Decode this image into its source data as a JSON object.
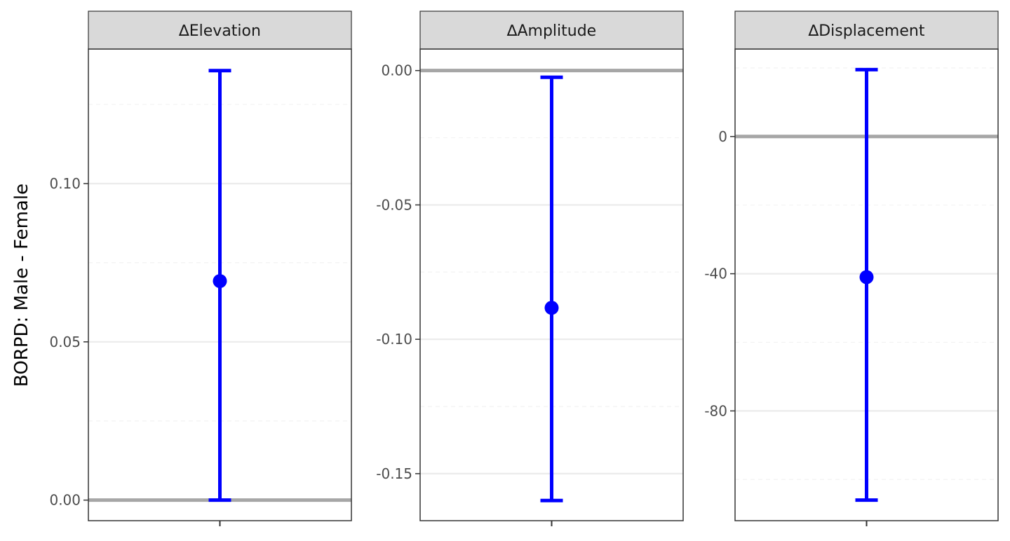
{
  "chart_data": {
    "type": "errorbar",
    "ylabel": "BORPD: Male - Female",
    "reference_line": 0,
    "panels": [
      {
        "title": "∆Elevation",
        "estimate": 0.0692,
        "lower": 0.0,
        "upper": 0.1357,
        "ylim": [
          -0.0065,
          0.1425
        ],
        "major_ticks": [
          0.0,
          0.05,
          0.1
        ],
        "tick_labels": [
          "0.00",
          "0.05",
          "0.10"
        ],
        "minor_ticks": [
          0.025,
          0.075,
          0.125
        ]
      },
      {
        "title": "∆Amplitude",
        "estimate": -0.0883,
        "lower": -0.16,
        "upper": -0.0025,
        "ylim": [
          -0.1675,
          0.008
        ],
        "major_ticks": [
          0.0,
          -0.05,
          -0.1,
          -0.15
        ],
        "tick_labels": [
          "0.00",
          "-0.05",
          "-0.10",
          "-0.15"
        ],
        "minor_ticks": [
          -0.025,
          -0.075,
          -0.125
        ]
      },
      {
        "title": "∆Displacement",
        "estimate": -41,
        "lower": -106,
        "upper": 19.5,
        "ylim": [
          -112,
          25.5
        ],
        "major_ticks": [
          0,
          -40,
          -80
        ],
        "tick_labels": [
          "0",
          "-40",
          "-80"
        ],
        "minor_ticks": [
          20,
          -20,
          -60,
          -100
        ]
      }
    ],
    "colors": {
      "series": "#0000ff",
      "zero_line": "#a6a6a6",
      "strip": "#d9d9d9",
      "major_grid": "#ebebeb",
      "minor_grid": "#f2f2f2"
    },
    "grid": true,
    "legend": "none"
  }
}
